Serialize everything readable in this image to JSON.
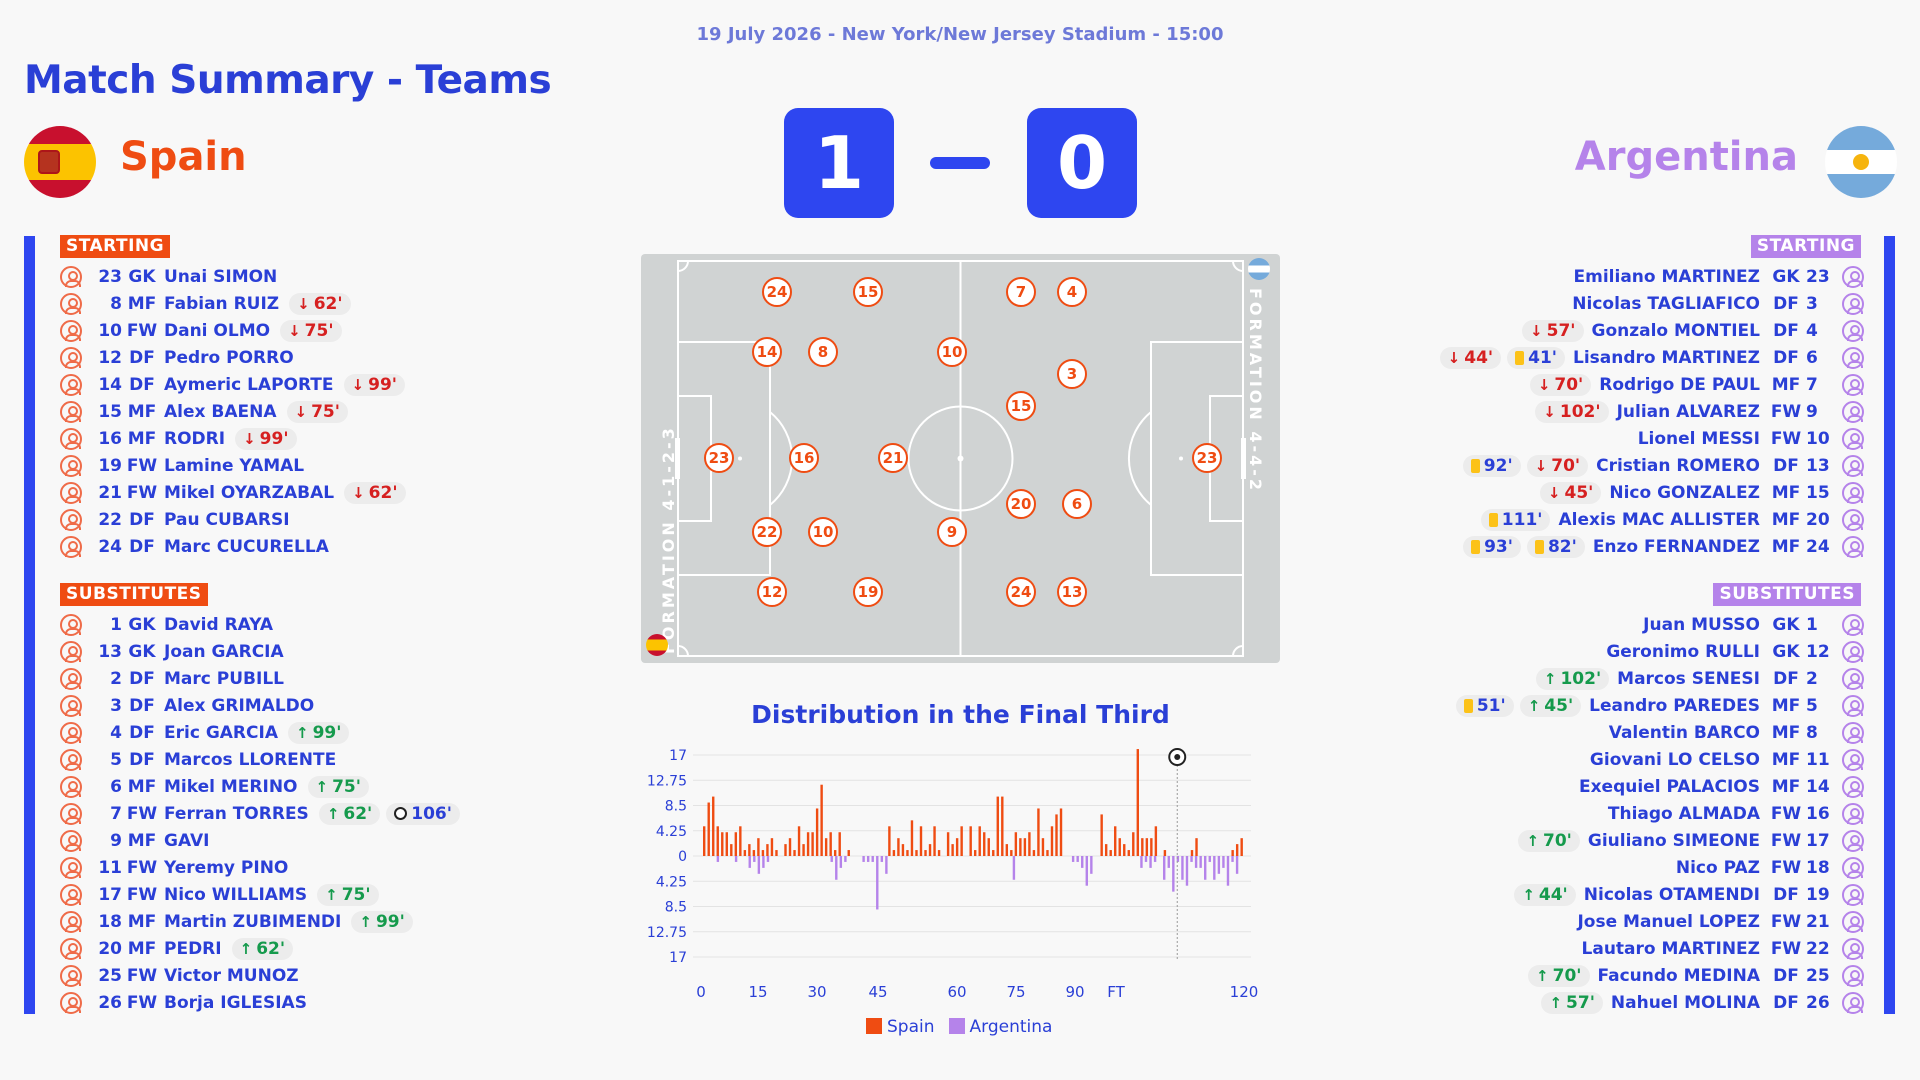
{
  "match": {
    "meta": "19 July 2026 - New York/New Jersey Stadium - 15:00",
    "title": "Match Summary - Teams",
    "home_name": "Spain",
    "away_name": "Argentina",
    "home_score": "1",
    "away_score": "0",
    "home_flag": "spain-flag-icon",
    "away_flag": "argentina-flag-icon"
  },
  "colors": {
    "home": "#ef4c12",
    "away": "#b583ea",
    "accent": "#2e46f0"
  },
  "labels": {
    "starting": "STARTING",
    "substitutes": "SUBSTITUTES"
  },
  "home": {
    "starting": [
      {
        "num": "23",
        "pos": "GK",
        "name": "Unai SIMON",
        "events": []
      },
      {
        "num": "8",
        "pos": "MF",
        "name": "Fabian RUIZ",
        "events": [
          {
            "type": "off",
            "text": "62'"
          }
        ]
      },
      {
        "num": "10",
        "pos": "FW",
        "name": "Dani OLMO",
        "events": [
          {
            "type": "off",
            "text": "75'"
          }
        ]
      },
      {
        "num": "12",
        "pos": "DF",
        "name": "Pedro PORRO",
        "events": []
      },
      {
        "num": "14",
        "pos": "DF",
        "name": "Aymeric LAPORTE",
        "events": [
          {
            "type": "off",
            "text": "99'"
          }
        ]
      },
      {
        "num": "15",
        "pos": "MF",
        "name": "Alex BAENA",
        "events": [
          {
            "type": "off",
            "text": "75'"
          }
        ]
      },
      {
        "num": "16",
        "pos": "MF",
        "name": "RODRI",
        "events": [
          {
            "type": "off",
            "text": "99'"
          }
        ]
      },
      {
        "num": "19",
        "pos": "FW",
        "name": "Lamine YAMAL",
        "events": []
      },
      {
        "num": "21",
        "pos": "FW",
        "name": "Mikel OYARZABAL",
        "events": [
          {
            "type": "off",
            "text": "62'"
          }
        ]
      },
      {
        "num": "22",
        "pos": "DF",
        "name": "Pau CUBARSI",
        "events": []
      },
      {
        "num": "24",
        "pos": "DF",
        "name": "Marc CUCURELLA",
        "events": []
      }
    ],
    "substitutes": [
      {
        "num": "1",
        "pos": "GK",
        "name": "David RAYA",
        "events": []
      },
      {
        "num": "13",
        "pos": "GK",
        "name": "Joan GARCIA",
        "events": []
      },
      {
        "num": "2",
        "pos": "DF",
        "name": "Marc PUBILL",
        "events": []
      },
      {
        "num": "3",
        "pos": "DF",
        "name": "Alex GRIMALDO",
        "events": []
      },
      {
        "num": "4",
        "pos": "DF",
        "name": "Eric GARCIA",
        "events": [
          {
            "type": "on",
            "text": "99'"
          }
        ]
      },
      {
        "num": "5",
        "pos": "DF",
        "name": "Marcos LLORENTE",
        "events": []
      },
      {
        "num": "6",
        "pos": "MF",
        "name": "Mikel MERINO",
        "events": [
          {
            "type": "on",
            "text": "75'"
          }
        ]
      },
      {
        "num": "7",
        "pos": "FW",
        "name": "Ferran TORRES",
        "events": [
          {
            "type": "on",
            "text": "62'"
          },
          {
            "type": "goal",
            "text": "106'"
          }
        ]
      },
      {
        "num": "9",
        "pos": "MF",
        "name": "GAVI",
        "events": []
      },
      {
        "num": "11",
        "pos": "FW",
        "name": "Yeremy PINO",
        "events": []
      },
      {
        "num": "17",
        "pos": "FW",
        "name": "Nico WILLIAMS",
        "events": [
          {
            "type": "on",
            "text": "75'"
          }
        ]
      },
      {
        "num": "18",
        "pos": "MF",
        "name": "Martin ZUBIMENDI",
        "events": [
          {
            "type": "on",
            "text": "99'"
          }
        ]
      },
      {
        "num": "20",
        "pos": "MF",
        "name": "PEDRI",
        "events": [
          {
            "type": "on",
            "text": "62'"
          }
        ]
      },
      {
        "num": "25",
        "pos": "FW",
        "name": "Victor MUNOZ",
        "events": []
      },
      {
        "num": "26",
        "pos": "FW",
        "name": "Borja IGLESIAS",
        "events": []
      }
    ]
  },
  "away": {
    "starting": [
      {
        "num": "23",
        "pos": "GK",
        "name": "Emiliano MARTINEZ",
        "events": []
      },
      {
        "num": "3",
        "pos": "DF",
        "name": "Nicolas TAGLIAFICO",
        "events": []
      },
      {
        "num": "4",
        "pos": "DF",
        "name": "Gonzalo MONTIEL",
        "events": [
          {
            "type": "off",
            "text": "57'"
          }
        ]
      },
      {
        "num": "6",
        "pos": "DF",
        "name": "Lisandro MARTINEZ",
        "events": [
          {
            "type": "card",
            "text": "41'"
          },
          {
            "type": "off",
            "text": "44'"
          }
        ]
      },
      {
        "num": "7",
        "pos": "MF",
        "name": "Rodrigo DE PAUL",
        "events": [
          {
            "type": "off",
            "text": "70'"
          }
        ]
      },
      {
        "num": "9",
        "pos": "FW",
        "name": "Julian ALVAREZ",
        "events": [
          {
            "type": "off",
            "text": "102'"
          }
        ]
      },
      {
        "num": "10",
        "pos": "FW",
        "name": "Lionel MESSI",
        "events": []
      },
      {
        "num": "13",
        "pos": "DF",
        "name": "Cristian ROMERO",
        "events": [
          {
            "type": "off",
            "text": "70'"
          },
          {
            "type": "card",
            "text": "92'"
          }
        ]
      },
      {
        "num": "15",
        "pos": "MF",
        "name": "Nico GONZALEZ",
        "events": [
          {
            "type": "off",
            "text": "45'"
          }
        ]
      },
      {
        "num": "20",
        "pos": "MF",
        "name": "Alexis MAC ALLISTER",
        "events": [
          {
            "type": "card",
            "text": "111'"
          }
        ]
      },
      {
        "num": "24",
        "pos": "MF",
        "name": "Enzo FERNANDEZ",
        "events": [
          {
            "type": "card",
            "text": "82'"
          },
          {
            "type": "card",
            "text": "93'"
          }
        ]
      }
    ],
    "substitutes": [
      {
        "num": "1",
        "pos": "GK",
        "name": "Juan MUSSO",
        "events": []
      },
      {
        "num": "12",
        "pos": "GK",
        "name": "Geronimo RULLI",
        "events": []
      },
      {
        "num": "2",
        "pos": "DF",
        "name": "Marcos SENESI",
        "events": [
          {
            "type": "on",
            "text": "102'"
          }
        ]
      },
      {
        "num": "5",
        "pos": "MF",
        "name": "Leandro PAREDES",
        "events": [
          {
            "type": "on",
            "text": "45'"
          },
          {
            "type": "card",
            "text": "51'"
          }
        ]
      },
      {
        "num": "8",
        "pos": "MF",
        "name": "Valentin BARCO",
        "events": []
      },
      {
        "num": "11",
        "pos": "MF",
        "name": "Giovani LO CELSO",
        "events": []
      },
      {
        "num": "14",
        "pos": "MF",
        "name": "Exequiel PALACIOS",
        "events": []
      },
      {
        "num": "16",
        "pos": "FW",
        "name": "Thiago ALMADA",
        "events": []
      },
      {
        "num": "17",
        "pos": "FW",
        "name": "Giuliano SIMEONE",
        "events": [
          {
            "type": "on",
            "text": "70'"
          }
        ]
      },
      {
        "num": "18",
        "pos": "FW",
        "name": "Nico PAZ",
        "events": []
      },
      {
        "num": "19",
        "pos": "DF",
        "name": "Nicolas OTAMENDI",
        "events": [
          {
            "type": "on",
            "text": "44'"
          }
        ]
      },
      {
        "num": "21",
        "pos": "FW",
        "name": "Jose Manuel LOPEZ",
        "events": []
      },
      {
        "num": "22",
        "pos": "FW",
        "name": "Lautaro MARTINEZ",
        "events": []
      },
      {
        "num": "25",
        "pos": "DF",
        "name": "Facundo MEDINA",
        "events": [
          {
            "type": "on",
            "text": "70'"
          }
        ]
      },
      {
        "num": "26",
        "pos": "DF",
        "name": "Nahuel MOLINA",
        "events": [
          {
            "type": "on",
            "text": "57'"
          }
        ]
      }
    ]
  },
  "pitch": {
    "home_formation": "FORMATION 4-1-2-3",
    "away_formation": "FORMATION 4-4-2",
    "home_players": [
      "23",
      "24",
      "14",
      "22",
      "12",
      "16",
      "15",
      "8",
      "10",
      "19",
      "21"
    ],
    "away_players": [
      "23",
      "4",
      "13",
      "6",
      "3",
      "7",
      "24",
      "20",
      "15",
      "10",
      "9"
    ]
  },
  "chart_data": {
    "type": "bar",
    "title": "Distribution in the Final Third",
    "xlabel": "",
    "ylabel": "",
    "x_tick_labels": [
      "0",
      "15",
      "30",
      "45",
      "60",
      "75",
      "90",
      "FT",
      "120"
    ],
    "y_tick_labels": [
      "17",
      "12.75",
      "8.5",
      "4.25",
      "0",
      "4.25",
      "8.5",
      "12.75",
      "17"
    ],
    "ylim": [
      -17,
      17
    ],
    "xlim": [
      0,
      120
    ],
    "legend": [
      "Spain",
      "Argentina"
    ],
    "legend_placement": "bottom",
    "grid": true,
    "goal_marker_minute": 106,
    "series": [
      {
        "name": "Spain",
        "color": "#ef4c12",
        "values": [
          5,
          9,
          10,
          5,
          4,
          4,
          2,
          4,
          5,
          1,
          2,
          1,
          3,
          1,
          2,
          3,
          1,
          0,
          2,
          3,
          1,
          5,
          2,
          4,
          4,
          8,
          12,
          3,
          4,
          1,
          4,
          0,
          1,
          0,
          0,
          0,
          0,
          0,
          0,
          0,
          0,
          5,
          1,
          3,
          2,
          1,
          6,
          1,
          5,
          1,
          2,
          5,
          1,
          0,
          4,
          2,
          3,
          5,
          0,
          5,
          1,
          5,
          4,
          3,
          1,
          10,
          10,
          2,
          1,
          4,
          3,
          3,
          4,
          1,
          8,
          3,
          1,
          5,
          7,
          8,
          0,
          0,
          0,
          0,
          0,
          0,
          0,
          0,
          7,
          2,
          1,
          5,
          3,
          2,
          1,
          4,
          18,
          3,
          3,
          3,
          5,
          0,
          1,
          0,
          0,
          0,
          0,
          0,
          1,
          3,
          0,
          0,
          0,
          0,
          0,
          0,
          0,
          1,
          2,
          3
        ]
      },
      {
        "name": "Argentina",
        "color": "#b583ea",
        "values": [
          0,
          0,
          0,
          -1,
          0,
          0,
          0,
          -1,
          0,
          0,
          -2,
          -1,
          -3,
          -2,
          -1,
          0,
          0,
          0,
          0,
          0,
          0,
          0,
          0,
          0,
          0,
          0,
          0,
          0,
          -1,
          -4,
          -2,
          -1,
          0,
          0,
          0,
          -1,
          -1,
          -1,
          -9,
          -1,
          -3,
          0,
          0,
          0,
          0,
          0,
          0,
          0,
          0,
          0,
          0,
          0,
          0,
          0,
          0,
          0,
          0,
          0,
          0,
          0,
          0,
          0,
          0,
          0,
          0,
          0,
          0,
          0,
          -4,
          0,
          0,
          0,
          0,
          0,
          0,
          0,
          0,
          0,
          0,
          0,
          0,
          -1,
          -1,
          -2,
          -5,
          -3,
          0,
          0,
          0,
          0,
          0,
          0,
          0,
          0,
          0,
          0,
          -2,
          -1,
          -2,
          -1,
          0,
          -4,
          -2,
          -6,
          -1,
          -4,
          -5,
          -1,
          -2,
          -2,
          -4,
          -1,
          -4,
          -3,
          -2,
          -5,
          -1,
          -3,
          0
        ]
      }
    ]
  }
}
